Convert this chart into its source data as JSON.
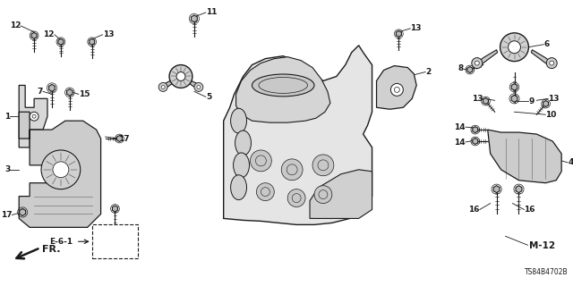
{
  "bg_color": "#ffffff",
  "line_color": "#1a1a1a",
  "fig_width": 6.4,
  "fig_height": 3.2,
  "dpi": 100,
  "diagram_code": "TS84B4702B",
  "fr_label": "FR.",
  "m12_label": "M-12",
  "e61_label": "E-6-1",
  "font_size_label": 6.5,
  "font_size_code": 5.5,
  "font_size_m12": 7.5
}
